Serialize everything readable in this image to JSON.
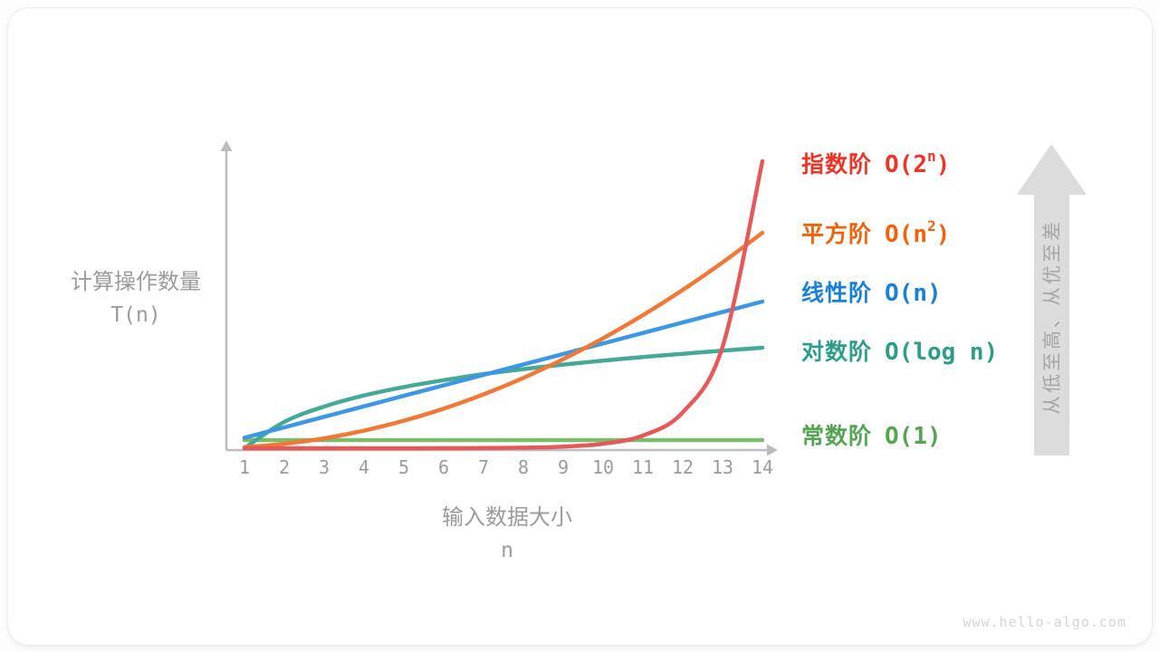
{
  "labels": {
    "y_line1": "计算操作数量",
    "y_line2": "T(n)",
    "x_line1": "输入数据大小",
    "x_line2": "n",
    "arrow_text": "从低至高、从优至差",
    "watermark": "www.hello-algo.com"
  },
  "chart_data": {
    "type": "line",
    "title": "",
    "xlabel": "输入数据大小 n",
    "ylabel": "计算操作数量 T(n)",
    "x": [
      1,
      2,
      3,
      4,
      5,
      6,
      7,
      8,
      9,
      10,
      11,
      12,
      13,
      14
    ],
    "x_ticks": [
      "1",
      "2",
      "3",
      "4",
      "5",
      "6",
      "7",
      "8",
      "9",
      "10",
      "11",
      "12",
      "13",
      "14"
    ],
    "xlim": [
      1,
      14
    ],
    "grid": false,
    "legend_position": "right",
    "axis_color": "#bcbcbc",
    "series": [
      {
        "id": "exponential",
        "label_zh": "指数阶",
        "notation_pre": "O(2",
        "notation_sup": "n",
        "notation_post": ")",
        "legend_color": "#ef3427",
        "line_color": "#e45a5b",
        "values": [
          2,
          4,
          8,
          16,
          32,
          64,
          128,
          256,
          512,
          1024,
          2048,
          4096,
          8192,
          16384
        ]
      },
      {
        "id": "quadratic",
        "label_zh": "平方阶",
        "notation_pre": "O(n",
        "notation_sup": "2",
        "notation_post": ")",
        "legend_color": "#f2620b",
        "line_color": "#f0793a",
        "values": [
          1,
          4,
          9,
          16,
          25,
          36,
          49,
          64,
          81,
          100,
          121,
          144,
          169,
          196
        ]
      },
      {
        "id": "linear",
        "label_zh": "线性阶",
        "notation_pre": "O(n",
        "notation_sup": "",
        "notation_post": ")",
        "legend_color": "#1a7fd6",
        "line_color": "#3e97e2",
        "values": [
          1,
          2,
          3,
          4,
          5,
          6,
          7,
          8,
          9,
          10,
          11,
          12,
          13,
          14
        ]
      },
      {
        "id": "logarithmic",
        "label_zh": "对数阶",
        "notation_pre": "O(log n",
        "notation_sup": "",
        "notation_post": ")",
        "legend_color": "#2d9c89",
        "line_color": "#46a997",
        "values": [
          0,
          1,
          1.58,
          2,
          2.32,
          2.58,
          2.81,
          3,
          3.17,
          3.32,
          3.46,
          3.58,
          3.7,
          3.81
        ]
      },
      {
        "id": "constant",
        "label_zh": "常数阶",
        "notation_pre": "O(1",
        "notation_sup": "",
        "notation_post": ")",
        "legend_color": "#55a455",
        "line_color": "#7cbd6c",
        "values": [
          1,
          1,
          1,
          1,
          1,
          1,
          1,
          1,
          1,
          1,
          1,
          1,
          1,
          1
        ]
      }
    ]
  }
}
